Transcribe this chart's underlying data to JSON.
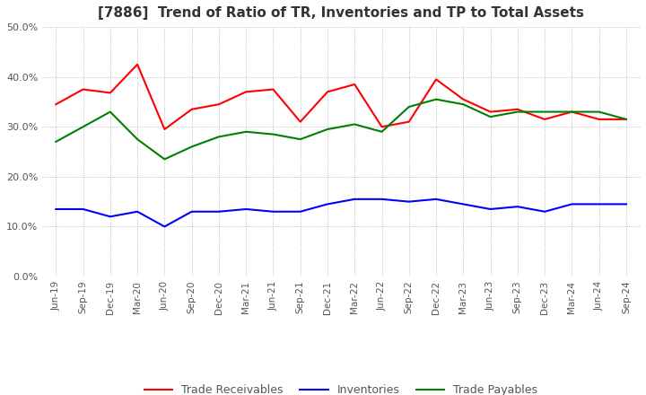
{
  "title": "[7886]  Trend of Ratio of TR, Inventories and TP to Total Assets",
  "x_labels": [
    "Jun-19",
    "Sep-19",
    "Dec-19",
    "Mar-20",
    "Jun-20",
    "Sep-20",
    "Dec-20",
    "Mar-21",
    "Jun-21",
    "Sep-21",
    "Dec-21",
    "Mar-22",
    "Jun-22",
    "Sep-22",
    "Dec-22",
    "Mar-23",
    "Jun-23",
    "Sep-23",
    "Dec-23",
    "Mar-24",
    "Jun-24",
    "Sep-24"
  ],
  "trade_receivables": [
    0.345,
    0.375,
    0.368,
    0.425,
    0.295,
    0.335,
    0.345,
    0.37,
    0.375,
    0.31,
    0.37,
    0.385,
    0.3,
    0.31,
    0.395,
    0.355,
    0.33,
    0.335,
    0.315,
    0.33,
    0.315,
    0.315
  ],
  "inventories": [
    0.135,
    0.135,
    0.12,
    0.13,
    0.1,
    0.13,
    0.13,
    0.135,
    0.13,
    0.13,
    0.145,
    0.155,
    0.155,
    0.15,
    0.155,
    0.145,
    0.135,
    0.14,
    0.13,
    0.145,
    0.145,
    0.145
  ],
  "trade_payables": [
    0.27,
    0.3,
    0.33,
    0.275,
    0.235,
    0.26,
    0.28,
    0.29,
    0.285,
    0.275,
    0.295,
    0.305,
    0.29,
    0.34,
    0.355,
    0.345,
    0.32,
    0.33,
    0.33,
    0.33,
    0.33,
    0.315
  ],
  "tr_color": "#ff0000",
  "inv_color": "#0000ff",
  "tp_color": "#008000",
  "ylim": [
    0.0,
    0.5
  ],
  "yticks": [
    0.0,
    0.1,
    0.2,
    0.3,
    0.4,
    0.5
  ],
  "background_color": "#ffffff",
  "grid_color": "#aaaaaa"
}
